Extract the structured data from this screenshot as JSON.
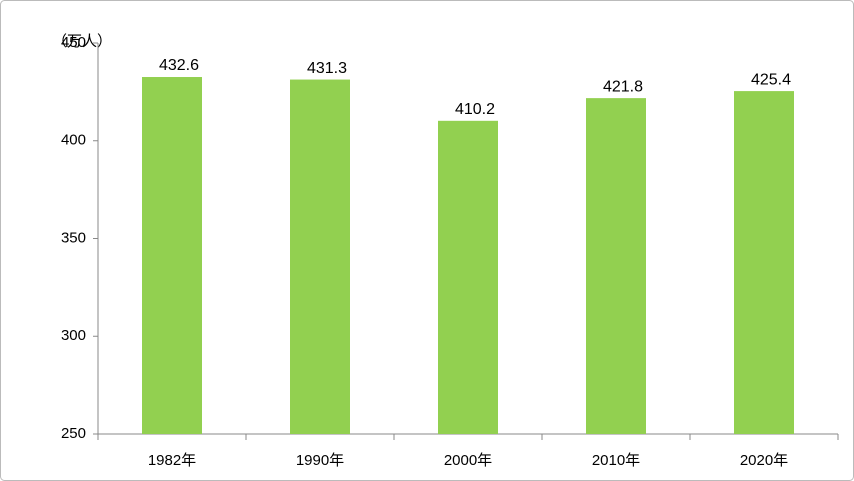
{
  "chart_data": {
    "type": "bar",
    "y_unit": "（万人）",
    "categories": [
      "1982年",
      "1990年",
      "2000年",
      "2010年",
      "2020年"
    ],
    "values": [
      432.6,
      431.3,
      410.2,
      421.8,
      425.4
    ],
    "color": "#92d050",
    "ylim": [
      250,
      450
    ],
    "yticks": [
      250,
      300,
      350,
      400,
      450
    ],
    "grid": false
  }
}
